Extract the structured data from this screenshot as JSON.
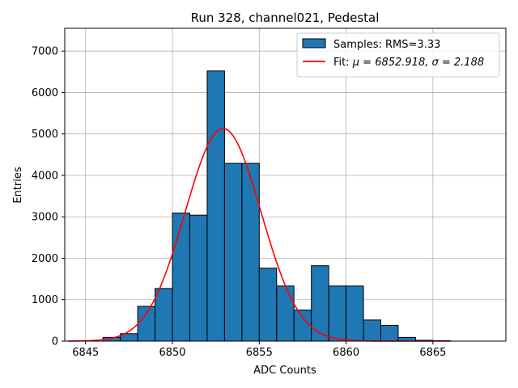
{
  "chart_data": {
    "type": "bar",
    "title": "Run 328, channel021, Pedestal",
    "xlabel": "ADC Counts",
    "ylabel": "Entries",
    "xlim": [
      6843.8,
      6869.2
    ],
    "ylim": [
      0,
      7550
    ],
    "xticks": [
      6845,
      6850,
      6855,
      6860,
      6865
    ],
    "yticks": [
      0,
      1000,
      2000,
      3000,
      4000,
      5000,
      6000,
      7000
    ],
    "grid": true,
    "legend_position": "top-right",
    "colors": {
      "bars": "#1f77b4",
      "bar_edge": "#000000",
      "fit": "#ff0000",
      "grid": "#b0b0b0"
    },
    "histogram": {
      "name": "Samples: RMS=3.33",
      "bin_width": 1,
      "bin_starts": [
        6846,
        6847,
        6848,
        6849,
        6850,
        6851,
        6852,
        6853,
        6854,
        6855,
        6856,
        6857,
        6858,
        6859,
        6860,
        6861,
        6862,
        6863,
        6864,
        6865
      ],
      "counts": [
        90,
        180,
        840,
        1270,
        3090,
        3040,
        6520,
        4290,
        4290,
        1760,
        1330,
        750,
        1820,
        1330,
        1330,
        510,
        380,
        90,
        20,
        10
      ]
    },
    "fit": {
      "name": "Fit: μ = 6852.918, σ = 2.188",
      "legend_prefix": "Fit: ",
      "legend_mu_part": "μ = 6852.918, ",
      "legend_sigma_part": "σ = 2.188",
      "mu": 6852.918,
      "sigma": 2.188,
      "amplitude": 5130,
      "x_range": [
        6844,
        6866
      ]
    }
  }
}
